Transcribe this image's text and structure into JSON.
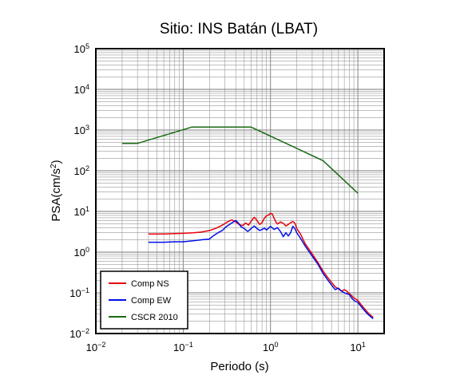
{
  "chart_data": {
    "type": "line",
    "title": "Sitio: INS Batán (LBAT)",
    "xlabel": "Periodo (s)",
    "ylabel_main": "PSA(cm/s",
    "ylabel_sup": "2",
    "ylabel_close": ")",
    "xscale": "log",
    "yscale": "log",
    "xlim": [
      0.01,
      20
    ],
    "ylim": [
      0.01,
      100000
    ],
    "grid": true,
    "legend_position": "bottom-left",
    "x_ticks": [
      {
        "value": 0.01,
        "base": "10",
        "exp": "−2"
      },
      {
        "value": 0.1,
        "base": "10",
        "exp": "−1"
      },
      {
        "value": 1,
        "base": "10",
        "exp": "0"
      },
      {
        "value": 10,
        "base": "10",
        "exp": "1"
      }
    ],
    "y_ticks": [
      {
        "value": 0.01,
        "base": "10",
        "exp": "−2"
      },
      {
        "value": 0.1,
        "base": "10",
        "exp": "−1"
      },
      {
        "value": 1,
        "base": "10",
        "exp": "0"
      },
      {
        "value": 10,
        "base": "10",
        "exp": "1"
      },
      {
        "value": 100,
        "base": "10",
        "exp": "2"
      },
      {
        "value": 1000,
        "base": "10",
        "exp": "3"
      },
      {
        "value": 10000,
        "base": "10",
        "exp": "4"
      },
      {
        "value": 100000,
        "base": "10",
        "exp": "5"
      }
    ],
    "series": [
      {
        "name": "Comp NS",
        "color": "#e8000b",
        "x": [
          0.04,
          0.06,
          0.08,
          0.1,
          0.13,
          0.16,
          0.2,
          0.24,
          0.28,
          0.32,
          0.36,
          0.4,
          0.44,
          0.48,
          0.52,
          0.56,
          0.6,
          0.65,
          0.7,
          0.75,
          0.8,
          0.85,
          0.9,
          0.95,
          1.0,
          1.05,
          1.1,
          1.15,
          1.2,
          1.3,
          1.4,
          1.5,
          1.6,
          1.7,
          1.8,
          1.9,
          2.0,
          2.2,
          2.5,
          3.0,
          3.5,
          4.0,
          4.5,
          5.0,
          5.5,
          6.0,
          6.5,
          7.0,
          7.5,
          8.0,
          8.5,
          9.0,
          10.0,
          11.0,
          12.0,
          13.0,
          14.0,
          15.0
        ],
        "y": [
          2.8,
          2.8,
          2.85,
          2.9,
          3.0,
          3.1,
          3.4,
          3.9,
          4.6,
          5.5,
          6.2,
          5.5,
          4.7,
          4.5,
          5.2,
          4.6,
          5.8,
          7.2,
          6.0,
          4.8,
          5.3,
          6.8,
          7.8,
          8.2,
          9.0,
          8.6,
          6.8,
          5.5,
          4.9,
          5.5,
          5.1,
          4.4,
          4.8,
          5.3,
          5.6,
          5.2,
          3.8,
          2.8,
          1.6,
          0.9,
          0.55,
          0.34,
          0.24,
          0.18,
          0.14,
          0.125,
          0.11,
          0.12,
          0.11,
          0.095,
          0.085,
          0.075,
          0.065,
          0.05,
          0.04,
          0.033,
          0.028,
          0.025
        ]
      },
      {
        "name": "Comp EW",
        "color": "#0010e8",
        "x": [
          0.04,
          0.06,
          0.08,
          0.1,
          0.13,
          0.16,
          0.2,
          0.22,
          0.25,
          0.28,
          0.31,
          0.34,
          0.37,
          0.4,
          0.43,
          0.46,
          0.5,
          0.55,
          0.6,
          0.65,
          0.7,
          0.75,
          0.8,
          0.85,
          0.9,
          0.95,
          1.0,
          1.1,
          1.2,
          1.3,
          1.4,
          1.5,
          1.6,
          1.7,
          1.8,
          1.9,
          2.0,
          2.2,
          2.5,
          3.0,
          3.5,
          4.0,
          4.5,
          5.0,
          5.5,
          6.0,
          6.5,
          7.0,
          7.5,
          8.0,
          8.5,
          9.0,
          10.0,
          11.0,
          12.0,
          13.0,
          14.0,
          15.0
        ],
        "y": [
          1.75,
          1.75,
          1.8,
          1.8,
          1.9,
          2.0,
          2.1,
          2.5,
          3.0,
          3.4,
          4.2,
          4.8,
          5.4,
          6.0,
          5.2,
          4.2,
          3.8,
          3.2,
          3.8,
          4.4,
          3.8,
          3.4,
          3.6,
          3.9,
          3.5,
          3.9,
          4.3,
          3.6,
          4.0,
          3.2,
          2.4,
          3.0,
          2.5,
          3.0,
          4.3,
          3.8,
          3.0,
          2.2,
          1.4,
          0.8,
          0.5,
          0.3,
          0.21,
          0.155,
          0.12,
          0.13,
          0.11,
          0.1,
          0.095,
          0.09,
          0.075,
          0.065,
          0.058,
          0.045,
          0.036,
          0.03,
          0.026,
          0.023
        ]
      },
      {
        "name": "CSCR 2010",
        "color": "#1a6b14",
        "x": [
          0.02,
          0.03,
          0.125,
          0.6,
          4.0,
          10.0
        ],
        "y": [
          470,
          470,
          1180,
          1180,
          177,
          28
        ]
      }
    ]
  }
}
